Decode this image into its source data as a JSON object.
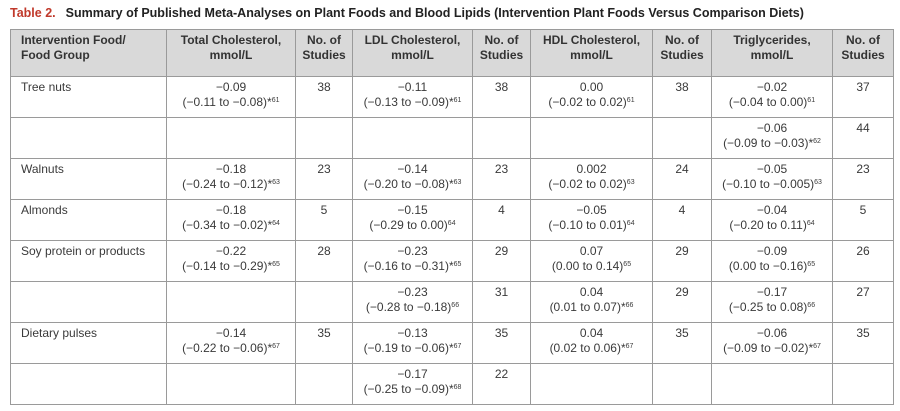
{
  "title": {
    "label": "Table 2.",
    "text": "Summary of Published Meta-Analyses on Plant Foods and Blood Lipids (Intervention Plant Foods Versus Comparison Diets)"
  },
  "table": {
    "headers": [
      [
        "Intervention Food/",
        "Food Group"
      ],
      [
        "Total Cholesterol,",
        "mmol/L"
      ],
      [
        "No. of",
        "Studies"
      ],
      [
        "LDL Cholesterol,",
        "mmol/L"
      ],
      [
        "No. of",
        "Studies"
      ],
      [
        "HDL Cholesterol,",
        "mmol/L"
      ],
      [
        "No. of",
        "Studies"
      ],
      [
        "Triglycerides,",
        "mmol/L"
      ],
      [
        "No. of",
        "Studies"
      ]
    ],
    "rows": [
      {
        "food": "Tree nuts",
        "total": {
          "value": "−0.09",
          "range": "(−0.11 to −0.08)",
          "star": "*",
          "ref": "61"
        },
        "total_n": "38",
        "ldl": {
          "value": "−0.11",
          "range": "(−0.13 to −0.09)",
          "star": "*",
          "ref": "61"
        },
        "ldl_n": "38",
        "hdl": {
          "value": "0.00",
          "range": "(−0.02 to 0.02)",
          "ref": "61"
        },
        "hdl_n": "38",
        "tg": {
          "value": "−0.02",
          "range": "(−0.04 to 0.00)",
          "ref": "61"
        },
        "tg_n": "37"
      },
      {
        "tg": {
          "value": "−0.06",
          "range": "(−0.09 to −0.03)",
          "star": "*",
          "ref": "62"
        },
        "tg_n": "44"
      },
      {
        "food": "Walnuts",
        "total": {
          "value": "−0.18",
          "range": "(−0.24 to −0.12)",
          "star": "*",
          "ref": "63"
        },
        "total_n": "23",
        "ldl": {
          "value": "−0.14",
          "range": "(−0.20 to −0.08)",
          "star": "*",
          "ref": "63"
        },
        "ldl_n": "23",
        "hdl": {
          "value": "0.002",
          "range": "(−0.02 to 0.02)",
          "ref": "63"
        },
        "hdl_n": "24",
        "tg": {
          "value": "−0.05",
          "range": "(−0.10 to −0.005)",
          "ref": "63"
        },
        "tg_n": "23"
      },
      {
        "food": "Almonds",
        "total": {
          "value": "−0.18",
          "range": "(−0.34 to −0.02)",
          "star": "*",
          "ref": "64"
        },
        "total_n": "5",
        "ldl": {
          "value": "−0.15",
          "range": "(−0.29 to 0.00)",
          "ref": "64"
        },
        "ldl_n": "4",
        "hdl": {
          "value": "−0.05",
          "range": "(−0.10 to 0.01)",
          "ref": "64"
        },
        "hdl_n": "4",
        "tg": {
          "value": "−0.04",
          "range": "(−0.20 to 0.11)",
          "ref": "64"
        },
        "tg_n": "5"
      },
      {
        "food": "Soy protein or products",
        "total": {
          "value": "−0.22",
          "range": "(−0.14 to −0.29)",
          "star": "*",
          "ref": "65"
        },
        "total_n": "28",
        "ldl": {
          "value": "−0.23",
          "range": "(−0.16 to −0.31)",
          "star": "*",
          "ref": "65"
        },
        "ldl_n": "29",
        "hdl": {
          "value": "0.07",
          "range": "(0.00 to 0.14)",
          "ref": "65"
        },
        "hdl_n": "29",
        "tg": {
          "value": "−0.09",
          "range": "(0.00 to −0.16)",
          "ref": "65"
        },
        "tg_n": "26"
      },
      {
        "ldl": {
          "value": "−0.23",
          "range": "(−0.28 to −0.18)",
          "ref": "66"
        },
        "ldl_n": "31",
        "hdl": {
          "value": "0.04",
          "range": "(0.01 to 0.07)",
          "star": "*",
          "ref": "66"
        },
        "hdl_n": "29",
        "tg": {
          "value": "−0.17",
          "range": "(−0.25 to 0.08)",
          "ref": "66"
        },
        "tg_n": "27"
      },
      {
        "food": "Dietary pulses",
        "total": {
          "value": "−0.14",
          "range": "(−0.22 to −0.06)",
          "star": "*",
          "ref": "67"
        },
        "total_n": "35",
        "ldl": {
          "value": "−0.13",
          "range": "(−0.19 to −0.06)",
          "star": "*",
          "ref": "67"
        },
        "ldl_n": "35",
        "hdl": {
          "value": "0.04",
          "range": "(0.02 to 0.06)",
          "star": "*",
          "ref": "67"
        },
        "hdl_n": "35",
        "tg": {
          "value": "−0.06",
          "range": "(−0.09 to −0.02)",
          "star": "*",
          "ref": "67"
        },
        "tg_n": "35"
      },
      {
        "ldl": {
          "value": "−0.17",
          "range": "(−0.25 to −0.09)",
          "star": "*",
          "ref": "68"
        },
        "ldl_n": "22"
      }
    ]
  }
}
